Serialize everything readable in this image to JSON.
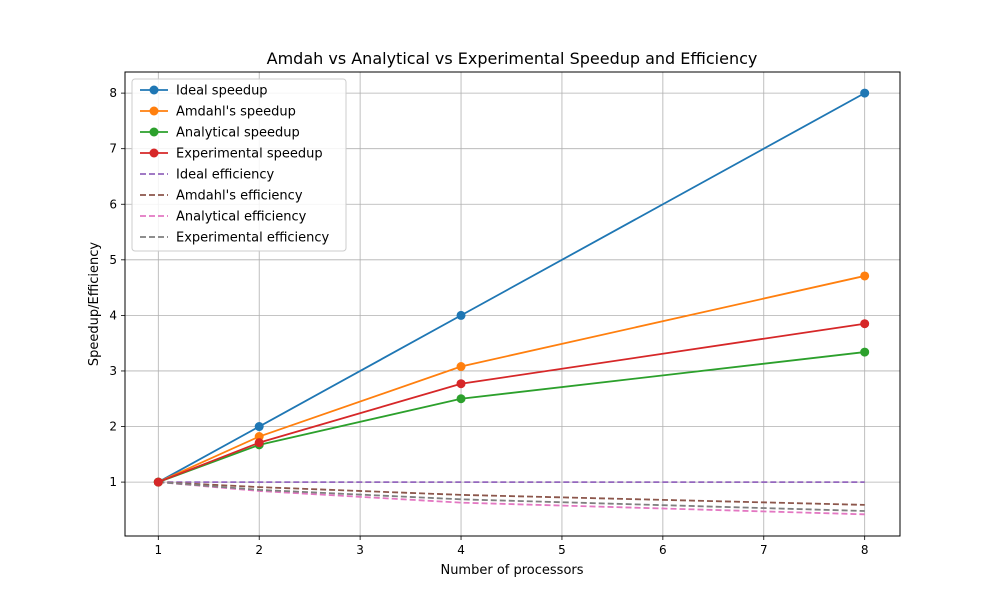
{
  "chart_data": {
    "type": "line",
    "title": "Amdah vs Analytical vs Experimental Speedup and Efficiency",
    "xlabel": "Number of processors",
    "ylabel": "Speedup/Efficiency",
    "x": [
      1,
      2,
      4,
      8
    ],
    "xlim": [
      0.67,
      8.35
    ],
    "ylim": [
      0.03,
      8.38
    ],
    "xticks": [
      1,
      2,
      3,
      4,
      5,
      6,
      7,
      8
    ],
    "yticks": [
      1,
      2,
      3,
      4,
      5,
      6,
      7,
      8
    ],
    "grid": true,
    "legend_position": "top-left",
    "series": [
      {
        "name": "Ideal speedup",
        "values": [
          1,
          2,
          4,
          8
        ],
        "color": "#1f77b4",
        "style": "solid",
        "marker": "circle"
      },
      {
        "name": "Amdahl's speedup",
        "values": [
          1,
          1.82,
          3.08,
          4.71
        ],
        "color": "#ff7f0e",
        "style": "solid",
        "marker": "circle"
      },
      {
        "name": "Analytical speedup",
        "values": [
          1,
          1.67,
          2.5,
          3.34
        ],
        "color": "#2ca02c",
        "style": "solid",
        "marker": "circle"
      },
      {
        "name": "Experimental speedup",
        "values": [
          1,
          1.71,
          2.77,
          3.85
        ],
        "color": "#d62728",
        "style": "solid",
        "marker": "circle"
      },
      {
        "name": "Ideal efficiency",
        "values": [
          1,
          1,
          1,
          1
        ],
        "color": "#9467bd",
        "style": "dashed",
        "marker": "none"
      },
      {
        "name": "Amdahl's efficiency",
        "values": [
          1,
          0.91,
          0.77,
          0.59
        ],
        "color": "#8c564b",
        "style": "dashed",
        "marker": "none"
      },
      {
        "name": "Analytical efficiency",
        "values": [
          1,
          0.84,
          0.63,
          0.42
        ],
        "color": "#e377c2",
        "style": "dashed",
        "marker": "none"
      },
      {
        "name": "Experimental efficiency",
        "values": [
          1,
          0.86,
          0.69,
          0.48
        ],
        "color": "#7f7f7f",
        "style": "dashed",
        "marker": "none"
      }
    ]
  }
}
